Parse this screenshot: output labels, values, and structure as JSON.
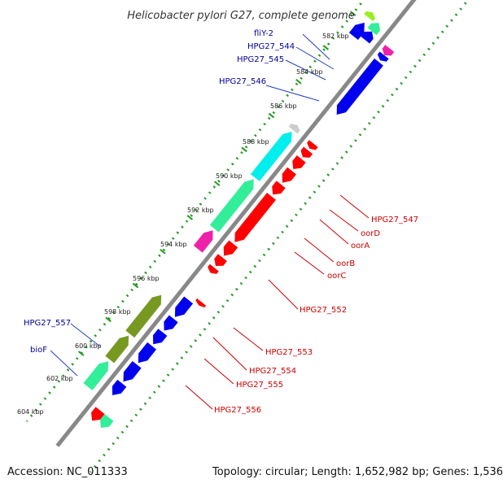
{
  "title": "Helicobacter pylori G27, complete genome",
  "footer": {
    "accession": "Accession: NC_011333",
    "stats": "Topology: circular; Length: 1,652,982 bp; Genes: 1,536"
  },
  "colors": {
    "red": "#ff0000",
    "blue": "#0000ee",
    "cyan": "#00eeee",
    "green": "#33ee99",
    "olive": "#779922",
    "magenta": "#ee22aa",
    "gray": "#cccccc",
    "lime": "#99ee22",
    "backbone": "#888888",
    "dots": "#229922",
    "left_label": "#000099",
    "right_label": "#cc0000"
  },
  "ticks": [
    "582 kbp",
    "584 kbp",
    "586 kbp",
    "588 kbp",
    "590 kbp",
    "592 kbp",
    "594 kbp",
    "596 kbp",
    "598 kbp",
    "600 kbp",
    "602 kbp",
    "604 kbp"
  ],
  "left_labels": [
    "fliY-2",
    "HPG27_544",
    "HPG27_545",
    "HPG27_546",
    "HPG27_557",
    "bioF"
  ],
  "right_labels": [
    "HPG27_547",
    "oorD",
    "oorA",
    "oorB",
    "oorC",
    "HPG27_552",
    "HPG27_553",
    "HPG27_554",
    "HPG27_555",
    "HPG27_556"
  ],
  "features": [
    {
      "track": "fwd",
      "s": 580.0,
      "e": 580.9,
      "color": "cyan"
    },
    {
      "track": "fwd",
      "s": 580.9,
      "e": 581.8,
      "color": "blue"
    },
    {
      "track": "fwdo",
      "s": 579.5,
      "e": 581.0,
      "color": "cyan"
    },
    {
      "track": "fwdo",
      "s": 581.1,
      "e": 582.1,
      "color": "blue"
    },
    {
      "track": "fwdo",
      "s": 583.4,
      "e": 583.7,
      "color": "lime"
    },
    {
      "track": "fwd",
      "s": 583.6,
      "e": 584.1,
      "color": "green"
    },
    {
      "track": "fwd",
      "s": 584.1,
      "e": 584.6,
      "color": "blue"
    },
    {
      "track": "fwdo",
      "s": 584.0,
      "e": 584.8,
      "color": "blue"
    },
    {
      "track": "rev",
      "s": 584.2,
      "e": 584.6,
      "color": "magenta"
    },
    {
      "track": "rev",
      "s": 584.6,
      "e": 584.9,
      "color": "blue"
    },
    {
      "track": "rev",
      "s": 585.0,
      "e": 588.1,
      "color": "blue"
    },
    {
      "track": "fwd",
      "s": 589.6,
      "e": 589.9,
      "color": "gray"
    },
    {
      "track": "fwd",
      "s": 590.0,
      "e": 592.7,
      "color": "cyan"
    },
    {
      "track": "fwd",
      "s": 592.8,
      "e": 595.7,
      "color": "green"
    },
    {
      "track": "fwd",
      "s": 595.8,
      "e": 596.9,
      "color": "magenta"
    },
    {
      "track": "rev",
      "s": 589.8,
      "e": 590.1,
      "color": "red"
    },
    {
      "track": "rev",
      "s": 590.2,
      "e": 590.6,
      "color": "red"
    },
    {
      "track": "rev",
      "s": 590.7,
      "e": 591.3,
      "color": "red"
    },
    {
      "track": "rev",
      "s": 591.4,
      "e": 592.1,
      "color": "red"
    },
    {
      "track": "rev",
      "s": 592.2,
      "e": 592.8,
      "color": "red"
    },
    {
      "track": "rev",
      "s": 592.9,
      "e": 595.6,
      "color": "red"
    },
    {
      "track": "rev",
      "s": 595.7,
      "e": 596.4,
      "color": "red"
    },
    {
      "track": "rev",
      "s": 596.5,
      "e": 597.0,
      "color": "red"
    },
    {
      "track": "rev",
      "s": 597.1,
      "e": 597.4,
      "color": "red"
    },
    {
      "track": "revo",
      "s": 598.7,
      "e": 598.9,
      "color": "red"
    },
    {
      "track": "rev",
      "s": 599.0,
      "e": 600.0,
      "color": "blue"
    },
    {
      "track": "rev",
      "s": 600.1,
      "e": 600.8,
      "color": "blue"
    },
    {
      "track": "rev",
      "s": 600.9,
      "e": 601.6,
      "color": "blue"
    },
    {
      "track": "rev",
      "s": 601.7,
      "e": 602.7,
      "color": "blue"
    },
    {
      "track": "rev",
      "s": 602.8,
      "e": 603.8,
      "color": "blue"
    },
    {
      "track": "rev",
      "s": 603.9,
      "e": 604.6,
      "color": "blue"
    },
    {
      "track": "fwd",
      "s": 599.6,
      "e": 601.9,
      "color": "olive"
    },
    {
      "track": "fwd",
      "s": 602.0,
      "e": 603.4,
      "color": "olive"
    },
    {
      "track": "fwd",
      "s": 603.5,
      "e": 605.0,
      "color": "green"
    },
    {
      "track": "rev",
      "s": 605.5,
      "e": 606.1,
      "color": "red"
    },
    {
      "track": "revo",
      "s": 605.5,
      "e": 606.1,
      "color": "green"
    }
  ]
}
